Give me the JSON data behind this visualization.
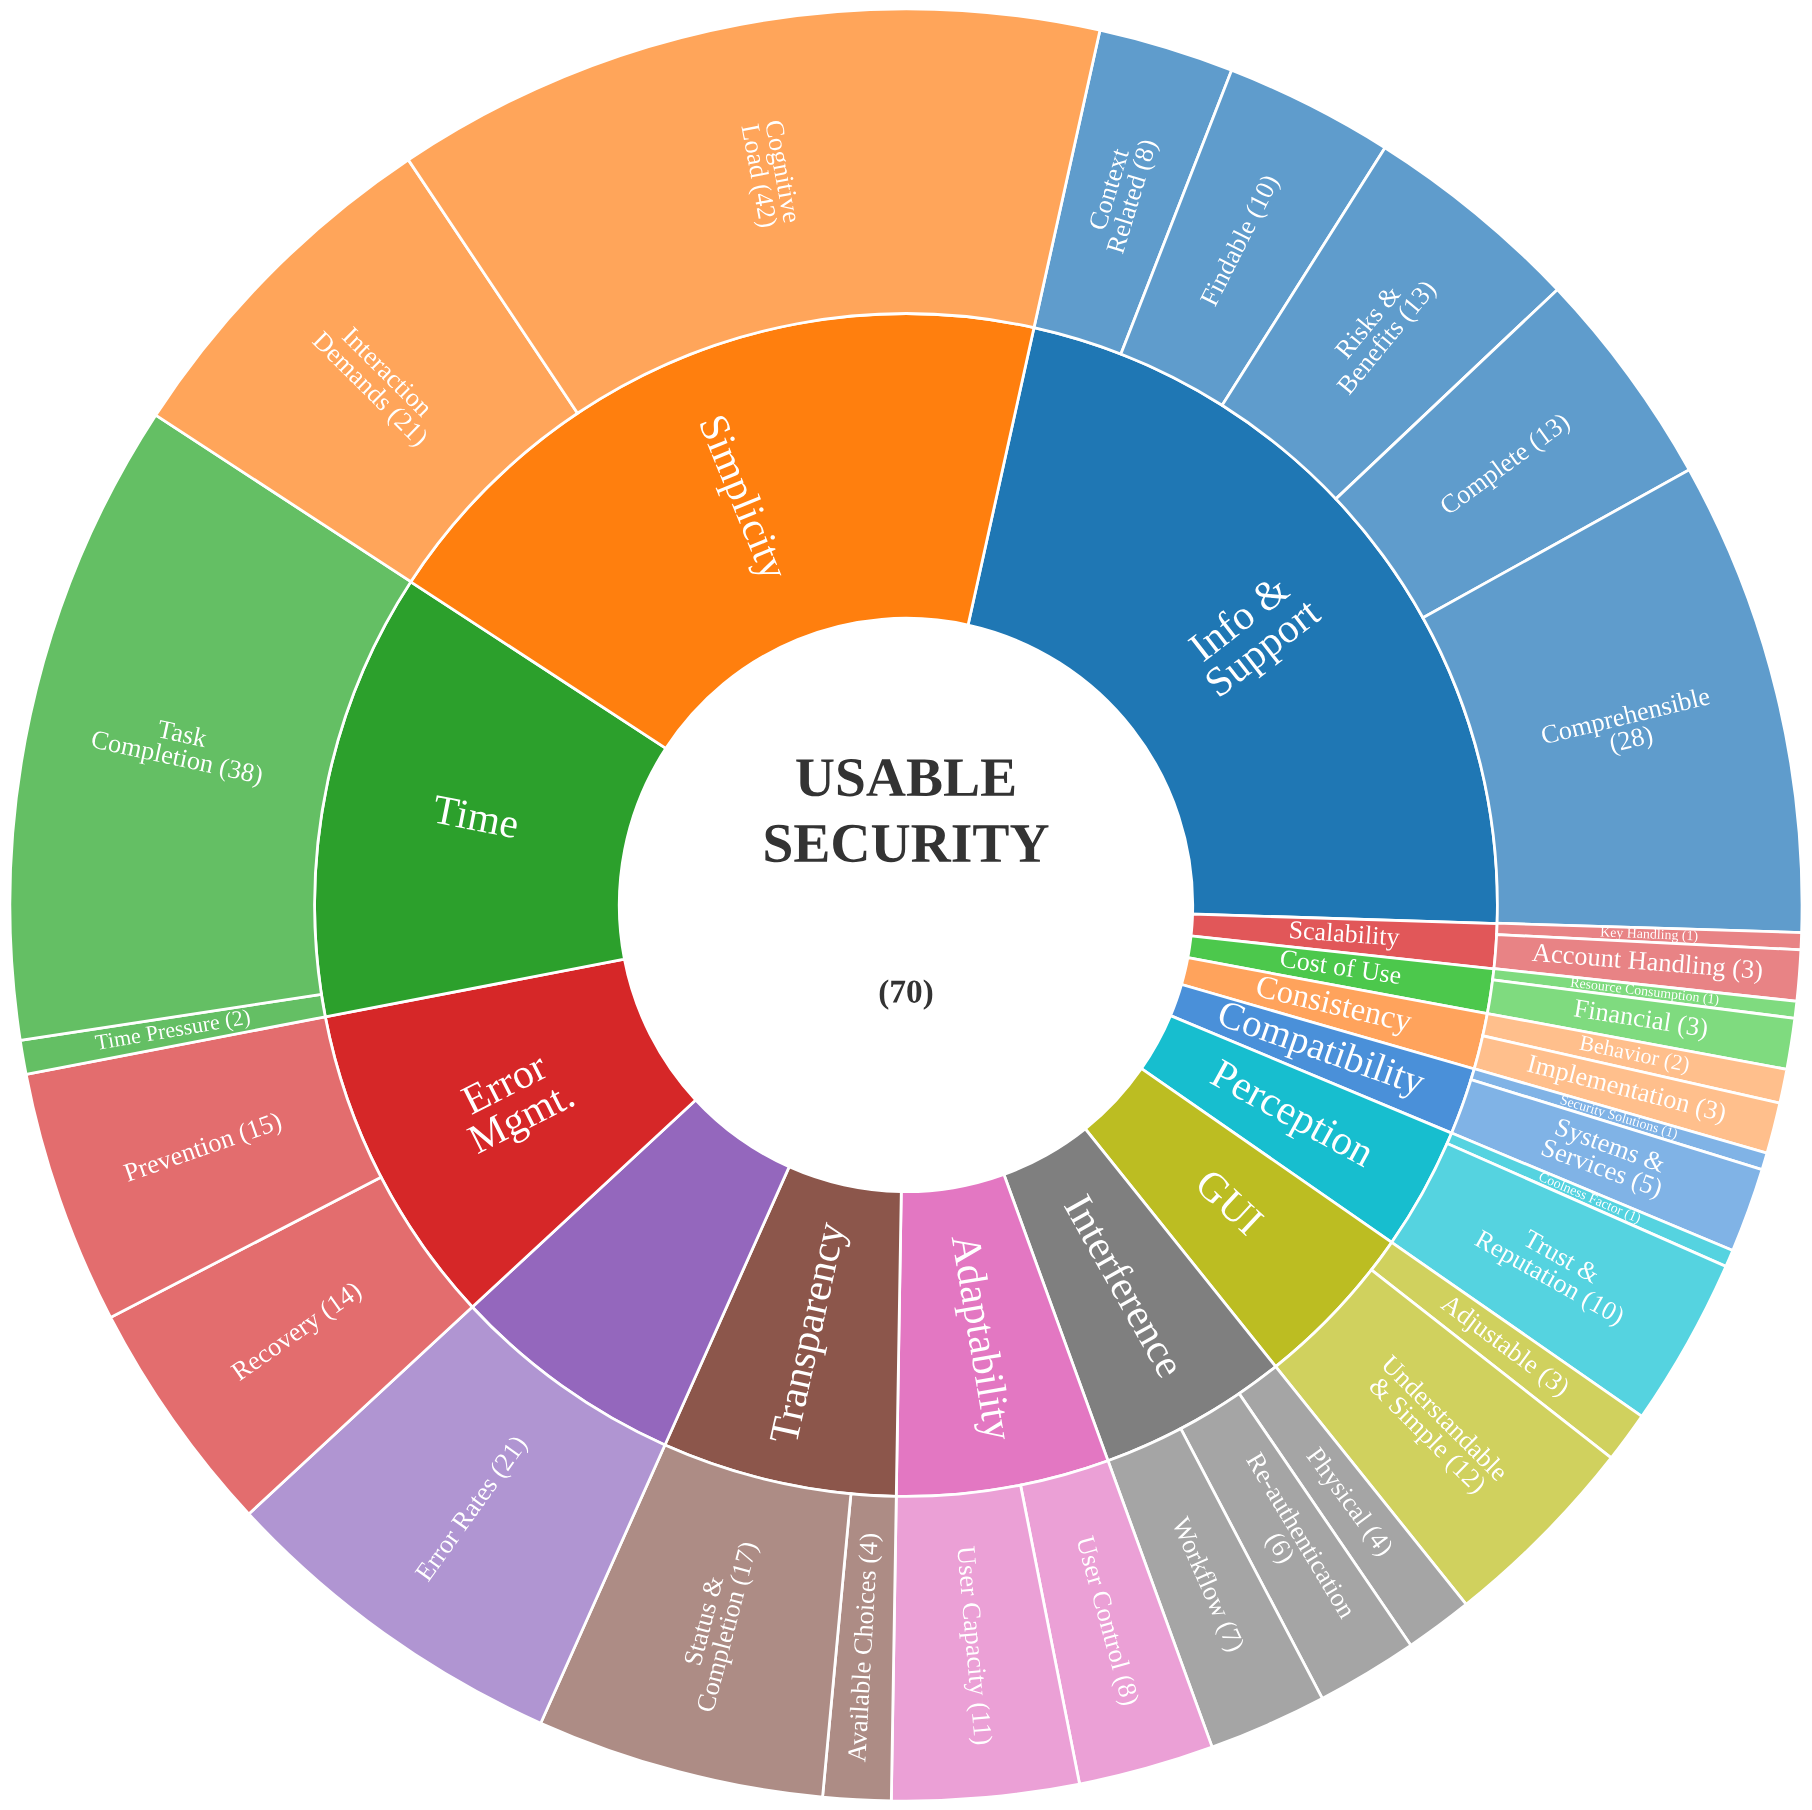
{
  "chart_data": {
    "type": "donut",
    "title": "USABLE SECURITY",
    "subtitle": "(70)",
    "series": [
      {
        "values": [
          22.03,
          1.22,
          1.22,
          1.53,
          1.83,
          3.36,
          4.59,
          5.2,
          5.81,
          6.42,
          6.42,
          8.87,
          12.23,
          19.27
        ],
        "value_labels": [
          "Info & Support",
          "Scalability",
          "Cost of Use",
          "Consistency",
          "Compatibility",
          "Perception",
          "GUI",
          "Interference",
          "Adaptability",
          "Transparency",
          null,
          "Error Mgmt.",
          "Time",
          "Simplicity"
        ],
        "colors": [
          "#1f77b4",
          "#e15759",
          "#4cc84c",
          "#ffa35c",
          "#4a90d9",
          "#17becf",
          "#bcbd22",
          "#7f7f7f",
          "#e377c2",
          "#8c564b",
          "#9467bd",
          "#d62728",
          "#2ca02c",
          "#ff7f0e"
        ]
      },
      {
        "values": [
          8,
          10,
          13,
          13,
          28,
          1,
          3,
          1,
          3,
          2,
          3,
          1,
          5,
          1,
          10,
          3,
          12,
          4,
          6,
          7,
          8,
          11,
          4,
          17,
          21,
          14,
          15,
          2,
          38,
          21,
          42
        ],
        "value_labels": [
          "Context Related (8)",
          "Findable (10)",
          "Risks & Benefits (13)",
          "Complete (13)",
          "Comprehensible (28)",
          "Key Handling (1)",
          "Account Handling (3)",
          "Resource Consumption (1)",
          "Financial (3)",
          "Behavior (2)",
          "Implementation (3)",
          "Security Solutions (1)",
          "Systems & Services (5)",
          "Coolness Factor (1)",
          "Trust & Reputation (10)",
          "Adjustable (3)",
          "Understandable & Simple (12)",
          "Physical (4)",
          "Re-authentication (6)",
          "Workflow (7)",
          "User Control (8)",
          "User Capacity (11)",
          "Available Choices (4)",
          "Status & Completion (17)",
          "Error Rates (21)",
          "Recovery (14)",
          "Prevention (15)",
          "Time Pressure (2)",
          "Task Completion (38)",
          "Interaction Demands (21)",
          "Cognitive Load (42)"
        ],
        "colors": [
          "#5f9ccc",
          "#5f9ccc",
          "#5f9ccc",
          "#5f9ccc",
          "#5f9ccc",
          "#e88385",
          "#e88385",
          "#7fdb7f",
          "#7fdb7f",
          "#ffbf8c",
          "#ffbf8c",
          "#80b3e6",
          "#80b3e6",
          "#55d3e0",
          "#55d3e0",
          "#d0d15e",
          "#d0d15e",
          "#a5a5a5",
          "#a5a5a5",
          "#a5a5a5",
          "#eba0d6",
          "#eba0d6",
          "#ad8c85",
          "#ad8c85",
          "#b095d2",
          "#e36d6e",
          "#e36d6e",
          "#64bf64",
          "#64bf64",
          "#ffa55a",
          "#ffa55a"
        ]
      }
    ]
  }
}
